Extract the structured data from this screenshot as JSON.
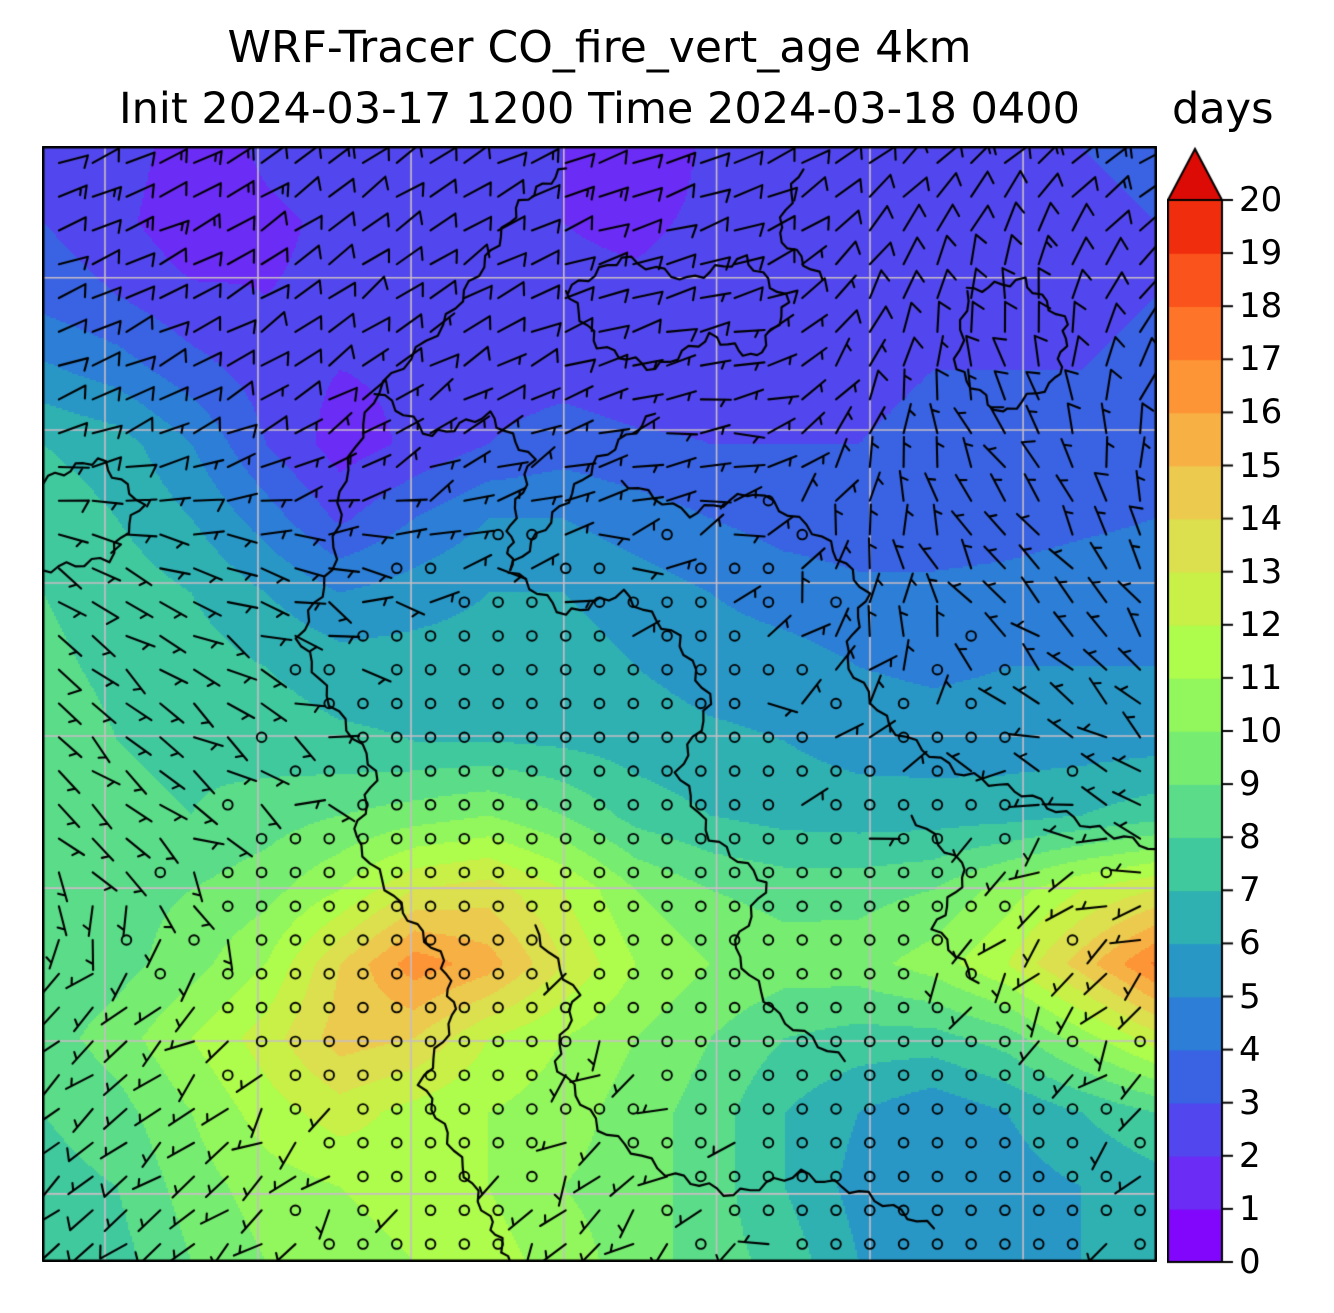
{
  "figure": {
    "title": "WRF-Tracer CO_fire_vert_age 4km",
    "subtitle": "Init 2024-03-17 1200 Time 2024-03-18 0400"
  },
  "colorbar": {
    "label": "days",
    "min": 0,
    "max": 20,
    "extend": "max",
    "tick_labels": [
      "0",
      "1",
      "2",
      "3",
      "4",
      "5",
      "6",
      "7",
      "8",
      "9",
      "10",
      "11",
      "12",
      "13",
      "14",
      "15",
      "16",
      "17",
      "18",
      "19",
      "20"
    ],
    "band_colors": [
      "#8106fb",
      "#6b2cf5",
      "#5247ee",
      "#3963e3",
      "#2c7ed6",
      "#2897c6",
      "#2fb1b2",
      "#41c99e",
      "#5adc88",
      "#76ec71",
      "#92f65d",
      "#aefc4b",
      "#c8f046",
      "#dcdf4e",
      "#ecca4e",
      "#f7b044",
      "#fd9436",
      "#fe7529",
      "#fa531b",
      "#f02e0e"
    ],
    "over_color": "#dd0b06",
    "outline_color": "#000000"
  },
  "chart_data": {
    "type": "heatmap",
    "title": "WRF-Tracer CO_fire_vert_age 4km",
    "subtitle": "Init 2024-03-17 1200 Time 2024-03-18 0400",
    "variable": "CO_fire_vert_age",
    "resolution": "4km",
    "init_time": "2024-03-17 1200",
    "valid_time": "2024-03-18 0400",
    "units": "days",
    "levels": [
      0,
      1,
      2,
      3,
      4,
      5,
      6,
      7,
      8,
      9,
      10,
      11,
      12,
      13,
      14,
      15,
      16,
      17,
      18,
      19,
      20
    ],
    "field_grid": {
      "nx": 16,
      "ny": 16,
      "comment_free_units": "days, rows top-to-bottom, normalized domain",
      "values": [
        [
          3.0,
          2.6,
          1.4,
          2.2,
          2.6,
          2.6,
          2.3,
          2.0,
          1.2,
          2.2,
          2.8,
          3.0,
          2.8,
          2.6,
          3.0,
          3.2
        ],
        [
          3.0,
          2.3,
          1.2,
          1.8,
          2.2,
          2.4,
          2.2,
          2.0,
          1.8,
          2.2,
          2.5,
          2.8,
          2.8,
          2.6,
          2.8,
          3.0
        ],
        [
          3.6,
          3.0,
          2.2,
          2.0,
          2.2,
          2.2,
          2.0,
          2.2,
          2.2,
          2.3,
          2.5,
          2.6,
          2.8,
          2.8,
          2.8,
          3.0
        ],
        [
          5.2,
          4.5,
          3.4,
          2.5,
          2.0,
          2.2,
          2.5,
          2.6,
          2.3,
          2.5,
          2.8,
          2.8,
          3.0,
          3.0,
          3.0,
          3.2
        ],
        [
          7.0,
          6.5,
          5.0,
          3.0,
          1.5,
          2.2,
          3.0,
          3.5,
          3.2,
          3.0,
          3.0,
          3.0,
          3.2,
          3.2,
          3.2,
          3.5
        ],
        [
          7.6,
          7.0,
          6.0,
          4.5,
          2.8,
          4.0,
          5.0,
          5.0,
          4.5,
          4.0,
          3.6,
          3.5,
          3.5,
          3.6,
          3.8,
          4.0
        ],
        [
          8.0,
          7.6,
          7.0,
          6.0,
          5.0,
          5.5,
          6.0,
          6.0,
          5.5,
          5.0,
          4.5,
          4.2,
          4.2,
          4.3,
          4.5,
          4.6
        ],
        [
          8.2,
          7.8,
          7.5,
          7.0,
          6.5,
          6.5,
          6.5,
          6.5,
          6.0,
          5.6,
          5.5,
          5.0,
          4.8,
          5.0,
          5.0,
          5.0
        ],
        [
          8.5,
          8.0,
          7.8,
          7.5,
          7.2,
          7.0,
          7.0,
          6.8,
          6.5,
          6.2,
          6.0,
          5.6,
          5.5,
          5.5,
          5.5,
          5.6
        ],
        [
          8.5,
          8.2,
          8.0,
          8.5,
          9.0,
          9.5,
          10.0,
          9.0,
          7.6,
          7.0,
          6.6,
          6.5,
          6.5,
          6.6,
          7.0,
          7.6
        ],
        [
          8.5,
          8.6,
          9.0,
          9.6,
          11.0,
          13.0,
          13.5,
          12.0,
          10.0,
          9.0,
          8.6,
          8.6,
          9.0,
          10.5,
          12.0,
          13.0
        ],
        [
          8.2,
          8.6,
          9.6,
          11.0,
          14.0,
          16.6,
          15.5,
          13.0,
          11.0,
          10.0,
          9.5,
          9.6,
          10.5,
          12.0,
          14.5,
          17.2
        ],
        [
          8.5,
          9.5,
          11.0,
          12.5,
          14.5,
          14.0,
          12.0,
          11.0,
          10.0,
          9.0,
          8.0,
          7.6,
          7.6,
          8.5,
          10.5,
          12.6
        ],
        [
          8.0,
          8.6,
          10.0,
          11.5,
          12.5,
          11.6,
          11.0,
          10.5,
          9.5,
          8.5,
          7.0,
          6.0,
          5.2,
          6.0,
          7.0,
          8.0
        ],
        [
          7.6,
          8.0,
          9.5,
          10.5,
          11.0,
          11.5,
          11.0,
          10.0,
          9.5,
          8.5,
          7.0,
          5.6,
          5.0,
          5.5,
          6.0,
          6.5
        ],
        [
          7.0,
          7.6,
          9.0,
          10.0,
          10.5,
          11.0,
          11.5,
          10.5,
          9.5,
          8.5,
          7.6,
          6.0,
          5.5,
          5.5,
          6.0,
          6.0
        ]
      ]
    },
    "wind_barbs_grid": {
      "nx": 9,
      "ny": 9,
      "units": "knots",
      "uv": [
        [
          [
            -12,
            -4
          ],
          [
            -12,
            -6
          ],
          [
            -10,
            -8
          ],
          [
            -10,
            -6
          ],
          [
            -12,
            -4
          ],
          [
            -10,
            -4
          ],
          [
            -8,
            -6
          ],
          [
            -10,
            -8
          ],
          [
            -12,
            -6
          ]
        ],
        [
          [
            -10,
            -4
          ],
          [
            -10,
            -5
          ],
          [
            -8,
            -6
          ],
          [
            -8,
            -5
          ],
          [
            -10,
            -3
          ],
          [
            -8,
            -2
          ],
          [
            -5,
            -9
          ],
          [
            0,
            -12
          ],
          [
            -9,
            -9
          ]
        ],
        [
          [
            -8,
            -3
          ],
          [
            -8,
            -4
          ],
          [
            -6,
            -4
          ],
          [
            -5,
            -3
          ],
          [
            -6,
            -2
          ],
          [
            -5,
            0
          ],
          [
            -2,
            -6
          ],
          [
            5,
            -7
          ],
          [
            -3,
            -8
          ]
        ],
        [
          [
            -6,
            4
          ],
          [
            -6,
            2
          ],
          [
            -4,
            1
          ],
          [
            -2,
            0
          ],
          [
            -2,
            0
          ],
          [
            -2,
            -1
          ],
          [
            0,
            -4
          ],
          [
            4,
            -4
          ],
          [
            3,
            -6
          ]
        ],
        [
          [
            -5,
            5
          ],
          [
            -4,
            3
          ],
          [
            -2,
            1
          ],
          [
            0,
            0
          ],
          [
            0,
            0
          ],
          [
            -1,
            0
          ],
          [
            -2,
            -2
          ],
          [
            3,
            -2
          ],
          [
            4,
            -4
          ]
        ],
        [
          [
            -4,
            4
          ],
          [
            -3,
            2
          ],
          [
            -1,
            0
          ],
          [
            0,
            0
          ],
          [
            0,
            0
          ],
          [
            0,
            0
          ],
          [
            -2,
            0
          ],
          [
            2,
            2
          ],
          [
            4,
            -2
          ]
        ],
        [
          [
            4,
            4
          ],
          [
            2,
            2
          ],
          [
            0,
            0
          ],
          [
            0,
            0
          ],
          [
            1,
            1
          ],
          [
            0,
            0
          ],
          [
            0,
            0
          ],
          [
            2,
            3
          ],
          [
            3,
            3
          ]
        ],
        [
          [
            6,
            5
          ],
          [
            4,
            3
          ],
          [
            1,
            1
          ],
          [
            0,
            0
          ],
          [
            2,
            2
          ],
          [
            1,
            0
          ],
          [
            0,
            0
          ],
          [
            0,
            0
          ],
          [
            2,
            2
          ]
        ],
        [
          [
            7,
            6
          ],
          [
            5,
            4
          ],
          [
            2,
            2
          ],
          [
            1,
            1
          ],
          [
            3,
            3
          ],
          [
            2,
            1
          ],
          [
            0,
            0
          ],
          [
            0,
            0
          ],
          [
            1,
            1
          ]
        ]
      ],
      "calm_threshold_knots": 2.5
    },
    "coastlines": [
      [
        [
          0.47,
          0.02
        ],
        [
          0.43,
          0.05
        ],
        [
          0.4,
          0.1
        ],
        [
          0.36,
          0.16
        ],
        [
          0.3,
          0.22
        ],
        [
          0.27,
          0.3
        ],
        [
          0.26,
          0.38
        ],
        [
          0.23,
          0.44
        ],
        [
          0.26,
          0.5
        ],
        [
          0.3,
          0.56
        ],
        [
          0.28,
          0.62
        ],
        [
          0.32,
          0.68
        ],
        [
          0.36,
          0.73
        ],
        [
          0.37,
          0.78
        ],
        [
          0.34,
          0.84
        ],
        [
          0.37,
          0.9
        ],
        [
          0.4,
          0.96
        ],
        [
          0.42,
          1.0
        ]
      ],
      [
        [
          0.47,
          0.13
        ],
        [
          0.52,
          0.1
        ],
        [
          0.58,
          0.12
        ],
        [
          0.63,
          0.1
        ],
        [
          0.67,
          0.14
        ],
        [
          0.64,
          0.19
        ],
        [
          0.6,
          0.17
        ],
        [
          0.55,
          0.2
        ],
        [
          0.5,
          0.18
        ],
        [
          0.47,
          0.13
        ]
      ],
      [
        [
          0.83,
          0.13
        ],
        [
          0.88,
          0.12
        ],
        [
          0.92,
          0.16
        ],
        [
          0.91,
          0.21
        ],
        [
          0.86,
          0.24
        ],
        [
          0.82,
          0.2
        ],
        [
          0.83,
          0.13
        ]
      ],
      [
        [
          0.52,
          0.3
        ],
        [
          0.58,
          0.33
        ],
        [
          0.64,
          0.31
        ],
        [
          0.7,
          0.35
        ],
        [
          0.74,
          0.4
        ],
        [
          0.72,
          0.46
        ],
        [
          0.76,
          0.52
        ],
        [
          0.82,
          0.56
        ],
        [
          0.88,
          0.58
        ],
        [
          0.94,
          0.61
        ],
        [
          1.0,
          0.63
        ]
      ],
      [
        [
          0.42,
          0.38
        ],
        [
          0.47,
          0.42
        ],
        [
          0.52,
          0.4
        ],
        [
          0.57,
          0.44
        ],
        [
          0.6,
          0.5
        ],
        [
          0.57,
          0.56
        ],
        [
          0.6,
          0.62
        ],
        [
          0.65,
          0.66
        ],
        [
          0.62,
          0.72
        ],
        [
          0.66,
          0.78
        ],
        [
          0.72,
          0.82
        ]
      ],
      [
        [
          0.44,
          0.7
        ],
        [
          0.48,
          0.76
        ],
        [
          0.46,
          0.82
        ],
        [
          0.5,
          0.88
        ],
        [
          0.56,
          0.92
        ],
        [
          0.62,
          0.94
        ],
        [
          0.68,
          0.92
        ],
        [
          0.74,
          0.94
        ],
        [
          0.8,
          0.97
        ]
      ],
      [
        [
          0.78,
          0.6
        ],
        [
          0.83,
          0.65
        ],
        [
          0.8,
          0.7
        ],
        [
          0.84,
          0.75
        ]
      ],
      [
        [
          0.0,
          0.3
        ],
        [
          0.05,
          0.28
        ],
        [
          0.09,
          0.32
        ],
        [
          0.06,
          0.37
        ],
        [
          0.0,
          0.38
        ]
      ],
      [
        [
          0.68,
          0.02
        ],
        [
          0.66,
          0.08
        ],
        [
          0.7,
          0.12
        ]
      ],
      [
        [
          0.55,
          0.24
        ],
        [
          0.5,
          0.28
        ],
        [
          0.46,
          0.33
        ],
        [
          0.42,
          0.38
        ]
      ],
      [
        [
          0.3,
          0.22
        ],
        [
          0.35,
          0.26
        ],
        [
          0.4,
          0.24
        ],
        [
          0.44,
          0.28
        ],
        [
          0.42,
          0.34
        ],
        [
          0.42,
          0.38
        ]
      ]
    ],
    "gridlines": {
      "x": [
        0.0565,
        0.1937,
        0.331,
        0.468,
        0.605,
        0.7426,
        0.8799
      ],
      "y": [
        0.118,
        0.2545,
        0.3916,
        0.5287,
        0.665,
        0.802,
        0.939
      ],
      "color": "#c8bcc4"
    },
    "plot_border_color": "#000000",
    "barb_color": "#000000"
  }
}
